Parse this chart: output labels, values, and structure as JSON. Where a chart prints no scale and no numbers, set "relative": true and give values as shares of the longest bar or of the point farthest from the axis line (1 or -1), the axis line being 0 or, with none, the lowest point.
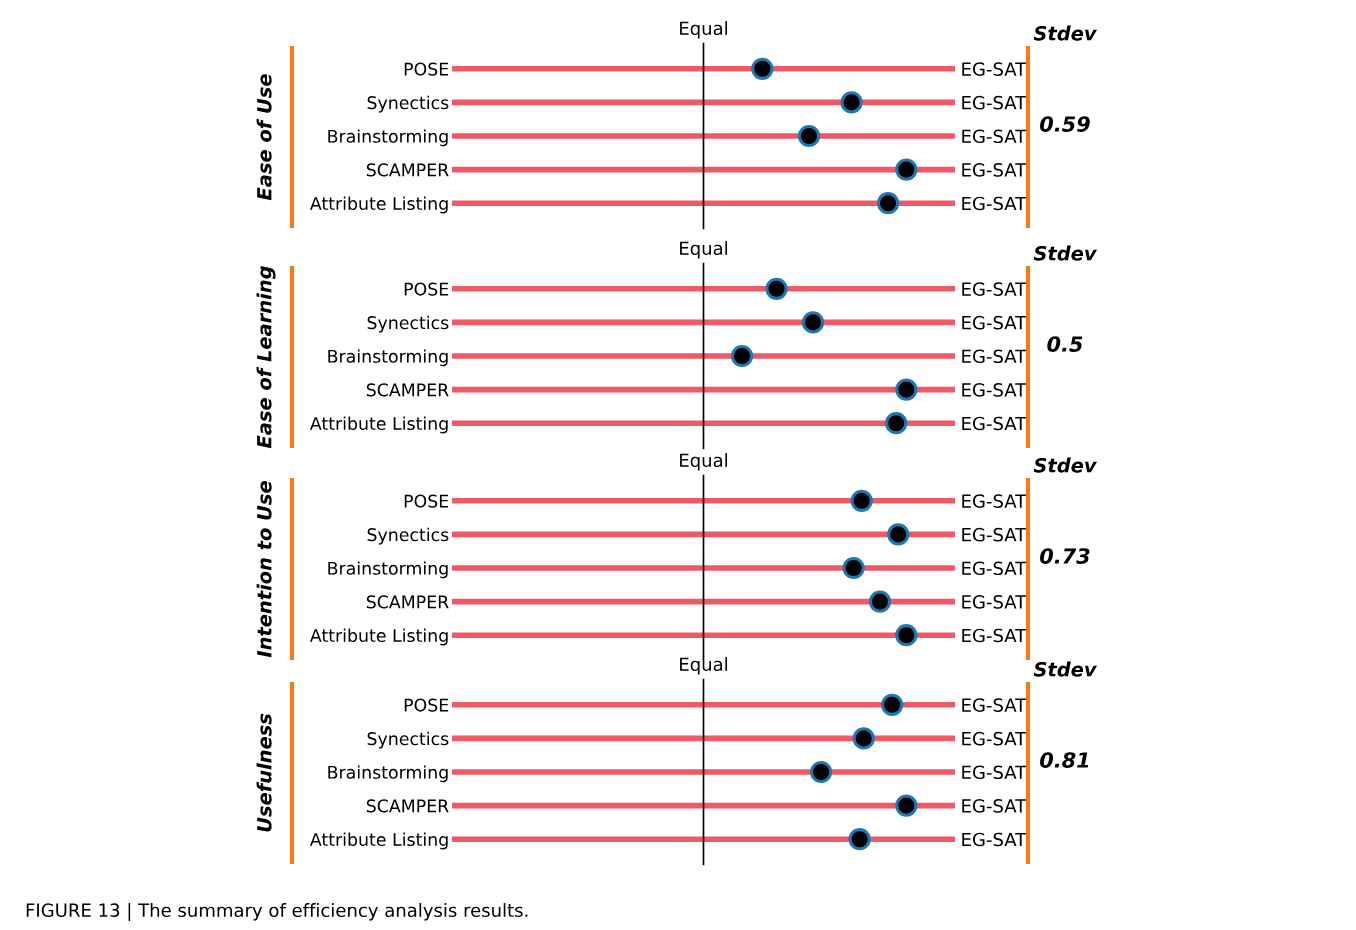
{
  "chart_data": [
    {
      "type": "scatter",
      "orientation": "horizontal",
      "relative": true,
      "ylabel": "Ease of Use",
      "categories": [
        "POSE",
        "Synectics",
        "Brainstorming",
        "SCAMPER",
        "Attribute Listing"
      ],
      "y2_categories": [
        "EG-SAT",
        "EG-SAT",
        "EG-SAT",
        "EG-SAT",
        "EG-SAT"
      ],
      "values": [
        0.29,
        0.73,
        0.52,
        1.0,
        0.91
      ],
      "color": "#000000",
      "marker": "circle",
      "grid": "y",
      "ref_lines": [
        {
          "axis": "x",
          "value": 0,
          "label": "Equal",
          "color": "#000000"
        }
      ],
      "annotations": [
        "Stdev",
        "0.59"
      ]
    },
    {
      "type": "scatter",
      "orientation": "horizontal",
      "relative": true,
      "ylabel": "Ease of Learning",
      "categories": [
        "POSE",
        "Synectics",
        "Brainstorming",
        "SCAMPER",
        "Attribute Listing"
      ],
      "y2_categories": [
        "EG-SAT",
        "EG-SAT",
        "EG-SAT",
        "EG-SAT",
        "EG-SAT"
      ],
      "values": [
        0.36,
        0.54,
        0.19,
        1.0,
        0.95
      ],
      "color": "#000000",
      "marker": "circle",
      "grid": "y",
      "ref_lines": [
        {
          "axis": "x",
          "value": 0,
          "label": "Equal",
          "color": "#000000"
        }
      ],
      "annotations": [
        "Stdev",
        "0.5"
      ]
    },
    {
      "type": "scatter",
      "orientation": "horizontal",
      "relative": true,
      "ylabel": "Intention to Use",
      "categories": [
        "POSE",
        "Synectics",
        "Brainstorming",
        "SCAMPER",
        "Attribute Listing"
      ],
      "y2_categories": [
        "EG-SAT",
        "EG-SAT",
        "EG-SAT",
        "EG-SAT",
        "EG-SAT"
      ],
      "values": [
        0.78,
        0.96,
        0.74,
        0.87,
        1.0
      ],
      "color": "#000000",
      "marker": "circle",
      "grid": "y",
      "ref_lines": [
        {
          "axis": "x",
          "value": 0,
          "label": "Equal",
          "color": "#000000"
        }
      ],
      "annotations": [
        "Stdev",
        "0.73"
      ]
    },
    {
      "type": "scatter",
      "orientation": "horizontal",
      "relative": true,
      "ylabel": "Usefulness",
      "categories": [
        "POSE",
        "Synectics",
        "Brainstorming",
        "SCAMPER",
        "Attribute Listing"
      ],
      "y2_categories": [
        "EG-SAT",
        "EG-SAT",
        "EG-SAT",
        "EG-SAT",
        "EG-SAT"
      ],
      "values": [
        0.93,
        0.79,
        0.58,
        1.0,
        0.77
      ],
      "color": "#000000",
      "marker": "circle",
      "grid": "y",
      "ref_lines": [
        {
          "axis": "x",
          "value": 0,
          "label": "Equal",
          "color": "#000000"
        }
      ],
      "annotations": [
        "Stdev",
        "0.81",
        "FIGURE 13 | The summary of efficiency analysis results."
      ]
    }
  ]
}
